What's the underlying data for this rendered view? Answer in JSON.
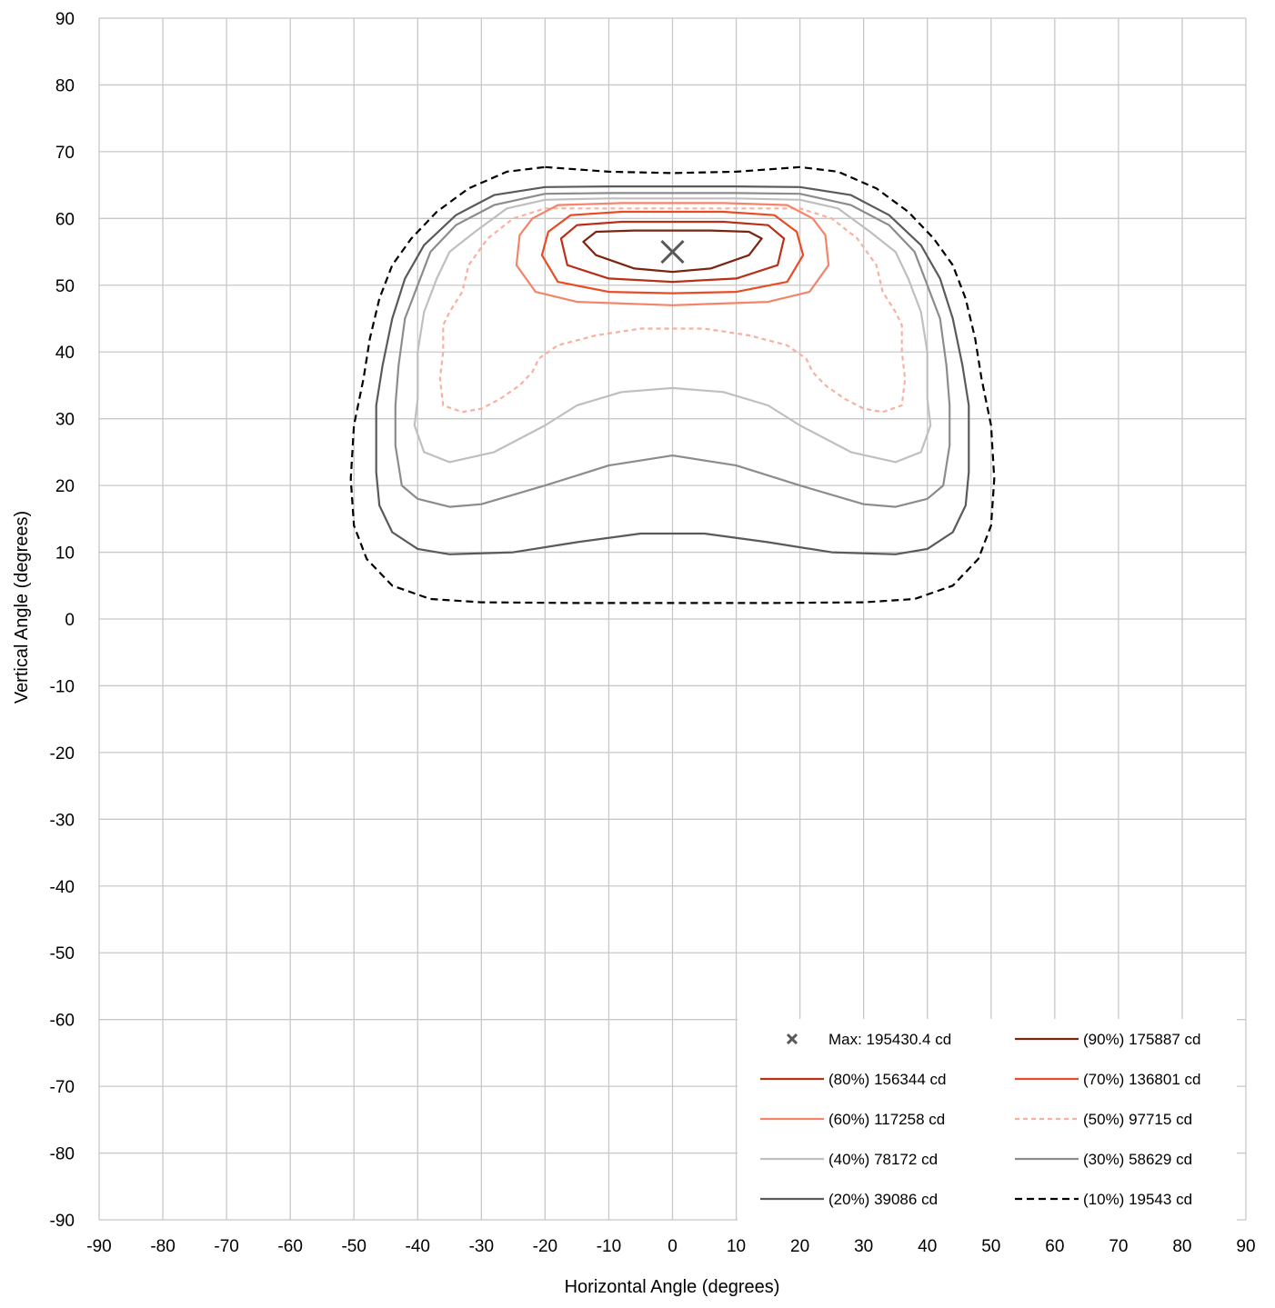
{
  "chart_data": {
    "type": "line",
    "subtype": "isocandela contour plot",
    "xlabel": "Horizontal Angle (degrees)",
    "ylabel": "Vertical Angle (degrees)",
    "xlim": [
      -90,
      90
    ],
    "ylim": [
      -90,
      90
    ],
    "x_ticks": [
      "-90",
      "-80",
      "-70",
      "-60",
      "-50",
      "-40",
      "-30",
      "-20",
      "-10",
      "0",
      "10",
      "20",
      "30",
      "40",
      "50",
      "60",
      "70",
      "80",
      "90"
    ],
    "y_ticks": [
      "90",
      "80",
      "70",
      "60",
      "50",
      "40",
      "30",
      "20",
      "10",
      "0",
      "-10",
      "-20",
      "-30",
      "-40",
      "-50",
      "-60",
      "-70",
      "-80",
      "-90"
    ],
    "grid": true,
    "legend_position": "bottom-right",
    "max_point": {
      "label": "Max: 195430.4 cd",
      "x": 0,
      "y": 55,
      "color": "#595959",
      "marker": "x"
    },
    "series": [
      {
        "name": "(90%) 175887 cd",
        "color": "#7b2410",
        "dash": "solid",
        "points": [
          [
            -12,
            58
          ],
          [
            -6,
            58.2
          ],
          [
            -1,
            58.2
          ],
          [
            1,
            58.2
          ],
          [
            6,
            58.2
          ],
          [
            12,
            58
          ],
          [
            14,
            57
          ],
          [
            12,
            54.5
          ],
          [
            6,
            52.5
          ],
          [
            0,
            52
          ],
          [
            -6,
            52.5
          ],
          [
            -12,
            54.5
          ],
          [
            -14,
            56.5
          ],
          [
            -12,
            58
          ]
        ]
      },
      {
        "name": "(80%) 156344 cd",
        "color": "#b83018",
        "dash": "solid",
        "points": [
          [
            -15,
            59
          ],
          [
            -8,
            59.5
          ],
          [
            -1,
            59.5
          ],
          [
            1,
            59.5
          ],
          [
            8,
            59.5
          ],
          [
            15,
            59
          ],
          [
            17.5,
            57
          ],
          [
            16.5,
            53
          ],
          [
            10,
            51
          ],
          [
            0,
            50.5
          ],
          [
            -10,
            51
          ],
          [
            -16.5,
            53
          ],
          [
            -17.5,
            57
          ],
          [
            -15,
            59
          ]
        ]
      },
      {
        "name": "(70%) 136801 cd",
        "color": "#ea4a24",
        "dash": "solid",
        "points": [
          [
            -16,
            60.5
          ],
          [
            -8,
            61
          ],
          [
            -1,
            61
          ],
          [
            1,
            61
          ],
          [
            8,
            61
          ],
          [
            16,
            60.5
          ],
          [
            19.5,
            58
          ],
          [
            20.5,
            54.5
          ],
          [
            18,
            50.5
          ],
          [
            10,
            49
          ],
          [
            0,
            48.8
          ],
          [
            -10,
            49
          ],
          [
            -18,
            50.5
          ],
          [
            -20.5,
            54.5
          ],
          [
            -19.5,
            58
          ],
          [
            -16,
            60.5
          ]
        ]
      },
      {
        "name": "(60%) 117258 cd",
        "color": "#f4846a",
        "dash": "solid",
        "points": [
          [
            -18,
            62
          ],
          [
            -8,
            62.3
          ],
          [
            -1,
            62.3
          ],
          [
            1,
            62.3
          ],
          [
            8,
            62.3
          ],
          [
            18,
            62
          ],
          [
            22,
            60
          ],
          [
            24,
            57.5
          ],
          [
            24.5,
            53
          ],
          [
            21.5,
            49
          ],
          [
            15,
            47.5
          ],
          [
            0,
            47
          ],
          [
            -15,
            47.5
          ],
          [
            -21.5,
            49
          ],
          [
            -24.5,
            53
          ],
          [
            -24,
            57.5
          ],
          [
            -22,
            60
          ],
          [
            -18,
            62
          ]
        ]
      },
      {
        "name": "(50%) 97715 cd",
        "color": "#f8b0a0",
        "dash": "dashed",
        "points": [
          [
            -20,
            61.5
          ],
          [
            -10,
            61.5
          ],
          [
            10,
            61.5
          ],
          [
            20,
            61.5
          ],
          [
            25,
            60
          ],
          [
            29,
            57
          ],
          [
            32,
            53
          ],
          [
            33,
            49
          ],
          [
            35,
            46
          ],
          [
            36,
            44
          ],
          [
            36,
            40
          ],
          [
            36.5,
            36
          ],
          [
            36,
            32
          ],
          [
            33,
            31
          ],
          [
            30,
            31.5
          ],
          [
            27,
            33
          ],
          [
            24,
            35
          ],
          [
            22,
            37
          ],
          [
            21,
            39
          ],
          [
            18,
            41
          ],
          [
            12,
            42.5
          ],
          [
            5,
            43.5
          ],
          [
            0,
            43.5
          ],
          [
            -5,
            43.5
          ],
          [
            -12,
            42.5
          ],
          [
            -18,
            41
          ],
          [
            -21,
            39
          ],
          [
            -22,
            37
          ],
          [
            -24,
            35
          ],
          [
            -27,
            33
          ],
          [
            -30,
            31.5
          ],
          [
            -33,
            31
          ],
          [
            -36,
            32
          ],
          [
            -36.5,
            36
          ],
          [
            -36,
            40
          ],
          [
            -36,
            44
          ],
          [
            -35,
            46
          ],
          [
            -33,
            49
          ],
          [
            -32,
            53
          ],
          [
            -29,
            57
          ],
          [
            -25,
            60
          ],
          [
            -20,
            61.5
          ]
        ]
      },
      {
        "name": "(40%) 78172 cd",
        "color": "#bfbfbf",
        "dash": "solid",
        "points": [
          [
            -20,
            62.8
          ],
          [
            -10,
            63
          ],
          [
            10,
            63
          ],
          [
            20,
            62.8
          ],
          [
            26,
            61.5
          ],
          [
            31,
            58
          ],
          [
            35,
            55
          ],
          [
            37,
            51
          ],
          [
            39,
            46
          ],
          [
            40,
            40
          ],
          [
            40,
            33
          ],
          [
            40.5,
            29
          ],
          [
            39,
            25
          ],
          [
            35,
            23.5
          ],
          [
            28,
            25
          ],
          [
            20,
            29
          ],
          [
            15,
            32
          ],
          [
            8,
            34
          ],
          [
            0,
            34.6
          ],
          [
            -8,
            34
          ],
          [
            -15,
            32
          ],
          [
            -20,
            29
          ],
          [
            -28,
            25
          ],
          [
            -35,
            23.5
          ],
          [
            -39,
            25
          ],
          [
            -40.5,
            29
          ],
          [
            -40,
            33
          ],
          [
            -40,
            40
          ],
          [
            -39,
            46
          ],
          [
            -37,
            51
          ],
          [
            -35,
            55
          ],
          [
            -31,
            58
          ],
          [
            -26,
            61.5
          ],
          [
            -20,
            62.8
          ]
        ]
      },
      {
        "name": "(30%) 58629 cd",
        "color": "#8c8c8c",
        "dash": "solid",
        "points": [
          [
            -20,
            63.7
          ],
          [
            -10,
            63.8
          ],
          [
            10,
            63.8
          ],
          [
            20,
            63.7
          ],
          [
            28,
            62
          ],
          [
            34,
            59
          ],
          [
            38,
            55
          ],
          [
            40,
            50
          ],
          [
            42,
            45
          ],
          [
            43,
            38
          ],
          [
            43.5,
            32
          ],
          [
            43.5,
            26
          ],
          [
            42.5,
            20
          ],
          [
            40,
            18
          ],
          [
            35,
            16.8
          ],
          [
            30,
            17.2
          ],
          [
            20,
            20
          ],
          [
            10,
            23
          ],
          [
            0,
            24.5
          ],
          [
            -10,
            23
          ],
          [
            -20,
            20
          ],
          [
            -30,
            17.2
          ],
          [
            -35,
            16.8
          ],
          [
            -40,
            18
          ],
          [
            -42.5,
            20
          ],
          [
            -43.5,
            26
          ],
          [
            -43.5,
            32
          ],
          [
            -43,
            38
          ],
          [
            -42,
            45
          ],
          [
            -40,
            50
          ],
          [
            -38,
            55
          ],
          [
            -34,
            59
          ],
          [
            -28,
            62
          ],
          [
            -20,
            63.7
          ]
        ]
      },
      {
        "name": "(20%) 39086 cd",
        "color": "#5a5a5a",
        "dash": "solid",
        "points": [
          [
            -20,
            64.7
          ],
          [
            -10,
            64.8
          ],
          [
            10,
            64.8
          ],
          [
            20,
            64.7
          ],
          [
            28,
            63.5
          ],
          [
            34,
            60.5
          ],
          [
            39,
            56
          ],
          [
            42,
            51
          ],
          [
            44,
            45
          ],
          [
            45.5,
            38
          ],
          [
            46.5,
            32
          ],
          [
            46.5,
            22
          ],
          [
            46,
            17
          ],
          [
            44,
            13
          ],
          [
            40,
            10.5
          ],
          [
            35,
            9.7
          ],
          [
            25,
            10
          ],
          [
            15,
            11.5
          ],
          [
            5,
            12.8
          ],
          [
            0,
            12.8
          ],
          [
            -5,
            12.8
          ],
          [
            -15,
            11.5
          ],
          [
            -25,
            10
          ],
          [
            -35,
            9.7
          ],
          [
            -40,
            10.5
          ],
          [
            -44,
            13
          ],
          [
            -46,
            17
          ],
          [
            -46.5,
            22
          ],
          [
            -46.5,
            32
          ],
          [
            -45.5,
            38
          ],
          [
            -44,
            45
          ],
          [
            -42,
            51
          ],
          [
            -39,
            56
          ],
          [
            -34,
            60.5
          ],
          [
            -28,
            63.5
          ],
          [
            -20,
            64.7
          ]
        ]
      },
      {
        "name": "(10%) 19543 cd",
        "color": "#000000",
        "dash": "longdash",
        "points": [
          [
            -20,
            67.7
          ],
          [
            -10,
            67
          ],
          [
            0,
            66.8
          ],
          [
            10,
            67
          ],
          [
            20,
            67.7
          ],
          [
            26,
            67
          ],
          [
            32,
            64.5
          ],
          [
            37,
            61
          ],
          [
            41,
            57
          ],
          [
            44,
            53
          ],
          [
            46,
            48
          ],
          [
            47.5,
            42
          ],
          [
            48.5,
            36
          ],
          [
            50,
            29
          ],
          [
            50.5,
            21
          ],
          [
            50,
            14
          ],
          [
            48,
            9
          ],
          [
            44,
            5
          ],
          [
            38,
            3
          ],
          [
            30,
            2.5
          ],
          [
            15,
            2.4
          ],
          [
            0,
            2.4
          ],
          [
            -15,
            2.4
          ],
          [
            -30,
            2.5
          ],
          [
            -38,
            3
          ],
          [
            -44,
            5
          ],
          [
            -48,
            9
          ],
          [
            -50,
            14
          ],
          [
            -50.5,
            21
          ],
          [
            -50,
            29
          ],
          [
            -48.5,
            36
          ],
          [
            -47.5,
            42
          ],
          [
            -46,
            48
          ],
          [
            -44,
            53
          ],
          [
            -41,
            57
          ],
          [
            -37,
            61
          ],
          [
            -32,
            64.5
          ],
          [
            -26,
            67
          ],
          [
            -20,
            67.7
          ]
        ]
      }
    ],
    "legend": [
      {
        "label": "Max: 195430.4 cd",
        "color": "#595959",
        "dash": "marker"
      },
      {
        "label": "(90%) 175887 cd",
        "color": "#7b2410",
        "dash": "solid"
      },
      {
        "label": "(80%) 156344 cd",
        "color": "#b83018",
        "dash": "solid"
      },
      {
        "label": "(70%) 136801 cd",
        "color": "#ea4a24",
        "dash": "solid"
      },
      {
        "label": "(60%) 117258 cd",
        "color": "#f4846a",
        "dash": "solid"
      },
      {
        "label": "(50%) 97715 cd",
        "color": "#f8b0a0",
        "dash": "dashed"
      },
      {
        "label": "(40%) 78172 cd",
        "color": "#bfbfbf",
        "dash": "solid"
      },
      {
        "label": "(30%) 58629 cd",
        "color": "#8c8c8c",
        "dash": "solid"
      },
      {
        "label": "(20%) 39086 cd",
        "color": "#5a5a5a",
        "dash": "solid"
      },
      {
        "label": "(10%) 19543 cd",
        "color": "#000000",
        "dash": "longdash"
      }
    ]
  }
}
